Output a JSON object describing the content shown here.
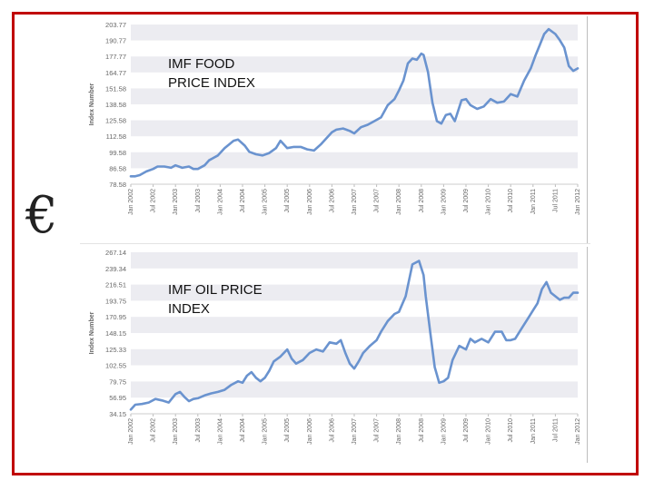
{
  "symbol": "€",
  "colors": {
    "line": "#6a93cf",
    "border": "#c00000",
    "band": "#ececf1",
    "tick": "#666666"
  },
  "chart_data": [
    {
      "type": "line",
      "title": "IMF FOOD PRICE INDEX",
      "title_lines": [
        "IMF FOOD",
        "PRICE INDEX"
      ],
      "ylabel": "Index Number",
      "y_ticks": [
        "78.58",
        "86.58",
        "99.58",
        "112.58",
        "125.58",
        "138.58",
        "151.58",
        "164.77",
        "177.77",
        "190.77",
        "203.77"
      ],
      "x_ticks": [
        "Jan 2002",
        "Jul 2002",
        "Jan 2003",
        "Jul 2003",
        "Jan 2004",
        "Jul 2004",
        "Jan 2005",
        "Jul 2005",
        "Jan 2006",
        "Jul 2006",
        "Jan 2007",
        "Jul 2007",
        "Jan 2008",
        "Jul 2008",
        "Jan 2009",
        "Jul 2009",
        "Jan 2010",
        "Jul 2010",
        "Jan 2011",
        "Jul 2011",
        "Jan 2012"
      ],
      "x_start": 2002.0,
      "x_end": 2012.0,
      "ylim": [
        73.58,
        203.77
      ],
      "series": [
        {
          "name": "Food Price Index",
          "x": [
            2002.0,
            2002.1,
            2002.2,
            2002.35,
            2002.5,
            2002.6,
            2002.75,
            2002.9,
            2003.0,
            2003.15,
            2003.3,
            2003.4,
            2003.5,
            2003.65,
            2003.75,
            2003.85,
            2003.95,
            2004.1,
            2004.3,
            2004.4,
            2004.55,
            2004.65,
            2004.8,
            2004.95,
            2005.1,
            2005.25,
            2005.35,
            2005.5,
            2005.65,
            2005.8,
            2005.95,
            2006.1,
            2006.25,
            2006.4,
            2006.5,
            2006.6,
            2006.75,
            2006.9,
            2007.0,
            2007.15,
            2007.3,
            2007.45,
            2007.6,
            2007.75,
            2007.9,
            2008.0,
            2008.1,
            2008.2,
            2008.3,
            2008.4,
            2008.5,
            2008.55,
            2008.65,
            2008.75,
            2008.85,
            2008.95,
            2009.05,
            2009.15,
            2009.25,
            2009.4,
            2009.5,
            2009.6,
            2009.75,
            2009.9,
            2010.05,
            2010.2,
            2010.35,
            2010.5,
            2010.65,
            2010.8,
            2010.95,
            2011.05,
            2011.15,
            2011.25,
            2011.35,
            2011.5,
            2011.6,
            2011.7,
            2011.8,
            2011.9,
            2012.0
          ],
          "values": [
            80,
            80,
            81,
            84,
            86,
            88,
            88,
            87,
            89,
            87,
            88,
            86,
            86,
            89,
            93,
            95,
            97,
            103,
            109,
            110,
            105,
            100,
            98,
            97,
            99,
            103,
            109,
            103,
            104,
            104,
            102,
            101,
            106,
            112,
            116,
            118,
            119,
            117,
            115,
            120,
            122,
            125,
            128,
            138,
            143,
            150,
            158,
            172,
            176,
            175,
            180,
            179,
            165,
            140,
            125,
            123,
            130,
            131,
            125,
            142,
            143,
            138,
            135,
            137,
            143,
            140,
            141,
            147,
            145,
            158,
            168,
            178,
            187,
            196,
            200,
            196,
            191,
            185,
            170,
            166,
            168
          ]
        }
      ]
    },
    {
      "type": "line",
      "title": "IMF OIL PRICE INDEX",
      "title_lines": [
        "IMF OIL PRICE",
        "INDEX"
      ],
      "ylabel": "Index Number",
      "y_ticks": [
        "34.15",
        "56.95",
        "79.75",
        "102.55",
        "125.33",
        "148.15",
        "170.95",
        "193.75",
        "216.51",
        "239.34",
        "267.14"
      ],
      "x_ticks": [
        "Jan 2002",
        "Jul 2002",
        "Jan 2003",
        "Jul 2003",
        "Jan 2004",
        "Jul 2004",
        "Jan 2005",
        "Jul 2005",
        "Jan 2006",
        "Jul 2006",
        "Jan 2007",
        "Jul 2007",
        "Jan 2008",
        "Jul 2008",
        "Jan 2009",
        "Jul 2009",
        "Jan 2010",
        "Jul 2010",
        "Jan 2011",
        "Jul 2011",
        "Jan 2012"
      ],
      "x_start": 2002.0,
      "x_end": 2012.0,
      "ylim": [
        34.15,
        262.14
      ],
      "series": [
        {
          "name": "Oil Price Index",
          "x": [
            2002.0,
            2002.1,
            2002.25,
            2002.4,
            2002.55,
            2002.7,
            2002.85,
            2003.0,
            2003.1,
            2003.2,
            2003.3,
            2003.4,
            2003.5,
            2003.65,
            2003.8,
            2003.95,
            2004.1,
            2004.25,
            2004.4,
            2004.5,
            2004.6,
            2004.7,
            2004.8,
            2004.9,
            2005.0,
            2005.1,
            2005.2,
            2005.35,
            2005.5,
            2005.6,
            2005.7,
            2005.85,
            2006.0,
            2006.15,
            2006.3,
            2006.45,
            2006.6,
            2006.7,
            2006.8,
            2006.9,
            2007.0,
            2007.1,
            2007.2,
            2007.35,
            2007.5,
            2007.6,
            2007.75,
            2007.9,
            2008.0,
            2008.15,
            2008.3,
            2008.45,
            2008.55,
            2008.6,
            2008.7,
            2008.8,
            2008.9,
            2009.0,
            2009.1,
            2009.2,
            2009.35,
            2009.5,
            2009.6,
            2009.7,
            2009.85,
            2010.0,
            2010.15,
            2010.3,
            2010.4,
            2010.5,
            2010.6,
            2010.75,
            2010.9,
            2011.0,
            2011.1,
            2011.2,
            2011.3,
            2011.4,
            2011.5,
            2011.6,
            2011.7,
            2011.8,
            2011.9,
            2012.0
          ],
          "values": [
            40,
            47,
            48,
            50,
            55,
            53,
            50,
            62,
            65,
            58,
            52,
            55,
            56,
            60,
            63,
            65,
            68,
            75,
            80,
            78,
            88,
            93,
            85,
            80,
            85,
            95,
            108,
            115,
            125,
            112,
            105,
            110,
            120,
            125,
            122,
            135,
            133,
            138,
            120,
            105,
            98,
            108,
            120,
            130,
            138,
            150,
            165,
            175,
            178,
            200,
            245,
            250,
            230,
            200,
            150,
            100,
            78,
            80,
            85,
            110,
            130,
            125,
            140,
            135,
            140,
            135,
            150,
            150,
            138,
            138,
            140,
            155,
            170,
            180,
            190,
            210,
            220,
            205,
            200,
            195,
            198,
            198,
            205,
            205
          ]
        }
      ]
    }
  ]
}
